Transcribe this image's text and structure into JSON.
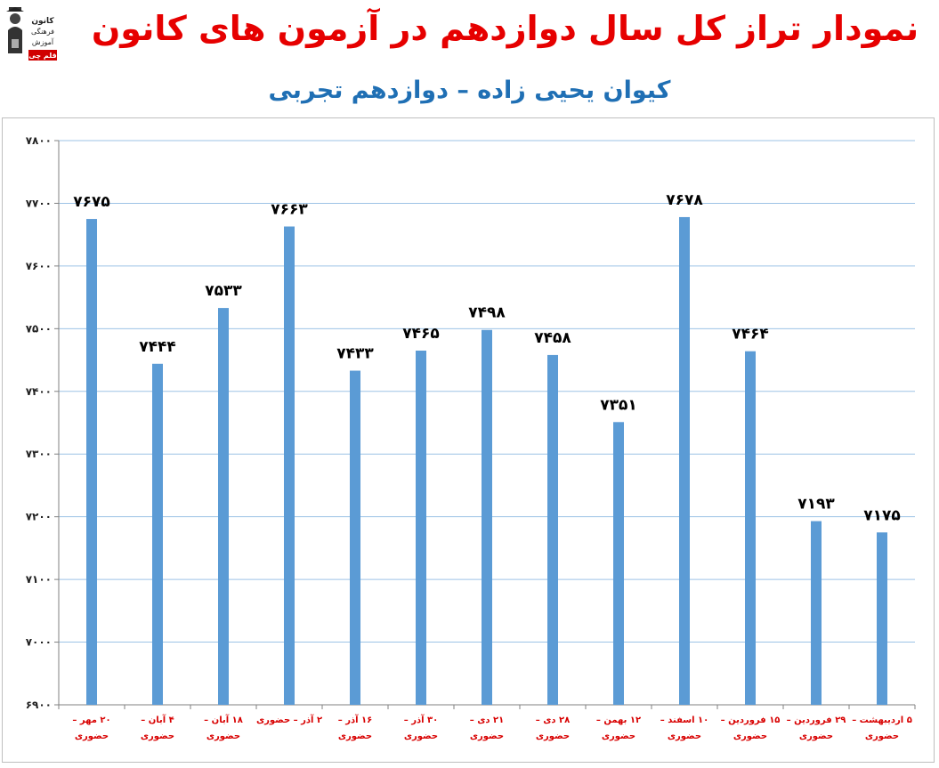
{
  "header": {
    "title": "نمودار تراز کل سال دوازدهم در آزمون های کانون",
    "subtitle": "کیوان یحیی زاده – دوازدهم تجربی",
    "logo": {
      "icon": "graduate-logo-icon",
      "lines": [
        "کانون",
        "فرهنگی",
        "آموزش"
      ],
      "badge": "قلم چی"
    }
  },
  "chart_data": {
    "type": "bar",
    "title": "نمودار تراز کل سال دوازدهم در آزمون های کانون",
    "subtitle": "کیوان یحیی زاده – دوازدهم تجربی",
    "xlabel": "",
    "ylabel": "",
    "ylim": [
      6900,
      7800
    ],
    "yticks": [
      6900,
      7000,
      7100,
      7200,
      7300,
      7400,
      7500,
      7600,
      7700,
      7800
    ],
    "ytick_labels": [
      "۶۹۰۰",
      "۷۰۰۰",
      "۷۱۰۰",
      "۷۲۰۰",
      "۷۳۰۰",
      "۷۴۰۰",
      "۷۵۰۰",
      "۷۶۰۰",
      "۷۷۰۰",
      "۷۸۰۰"
    ],
    "grid": true,
    "legend": "none",
    "bar_color": "#5b9bd5",
    "categories": [
      [
        "۲۰ مهر –",
        "حضوری"
      ],
      [
        "۴ آبان –",
        "حضوری"
      ],
      [
        "۱۸ آبان –",
        "حضوری"
      ],
      [
        "۲ آذر – حضوری"
      ],
      [
        "۱۶ آذر –",
        "حضوری"
      ],
      [
        "۳۰ آذر –",
        "حضوری"
      ],
      [
        "۲۱ دی –",
        "حضوری"
      ],
      [
        "۲۸ دی –",
        "حضوری"
      ],
      [
        "۱۲ بهمن –",
        "حضوری"
      ],
      [
        "۱۰ اسفند –",
        "حضوری"
      ],
      [
        "۱۵ فروردین –",
        "حضوری"
      ],
      [
        "۲۹ فروردین –",
        "حضوری"
      ],
      [
        "۵ اردیبهشت –",
        "حضوری"
      ]
    ],
    "values": [
      7675,
      7444,
      7533,
      7663,
      7433,
      7465,
      7498,
      7458,
      7351,
      7678,
      7464,
      7193,
      7175
    ],
    "value_labels": [
      "۷۶۷۵",
      "۷۴۴۴",
      "۷۵۳۳",
      "۷۶۶۳",
      "۷۴۳۳",
      "۷۴۶۵",
      "۷۴۹۸",
      "۷۴۵۸",
      "۷۳۵۱",
      "۷۶۷۸",
      "۷۴۶۴",
      "۷۱۹۳",
      "۷۱۷۵"
    ]
  }
}
